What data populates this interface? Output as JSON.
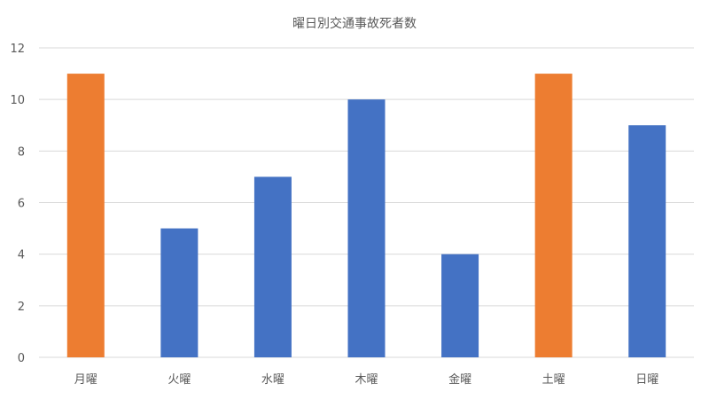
{
  "chart_data": {
    "type": "bar",
    "title": "曜日別交通事故死者数",
    "categories": [
      "月曜",
      "火曜",
      "水曜",
      "木曜",
      "金曜",
      "土曜",
      "日曜"
    ],
    "values": [
      11,
      5,
      7,
      10,
      4,
      11,
      9
    ],
    "bar_colors": [
      "#ED7D31",
      "#4472C4",
      "#4472C4",
      "#4472C4",
      "#4472C4",
      "#ED7D31",
      "#4472C4"
    ],
    "y_ticks": [
      0,
      2,
      4,
      6,
      8,
      10,
      12
    ],
    "ylim": [
      0,
      12
    ],
    "xlabel": "",
    "ylabel": "",
    "grid": true,
    "legend": "none"
  }
}
